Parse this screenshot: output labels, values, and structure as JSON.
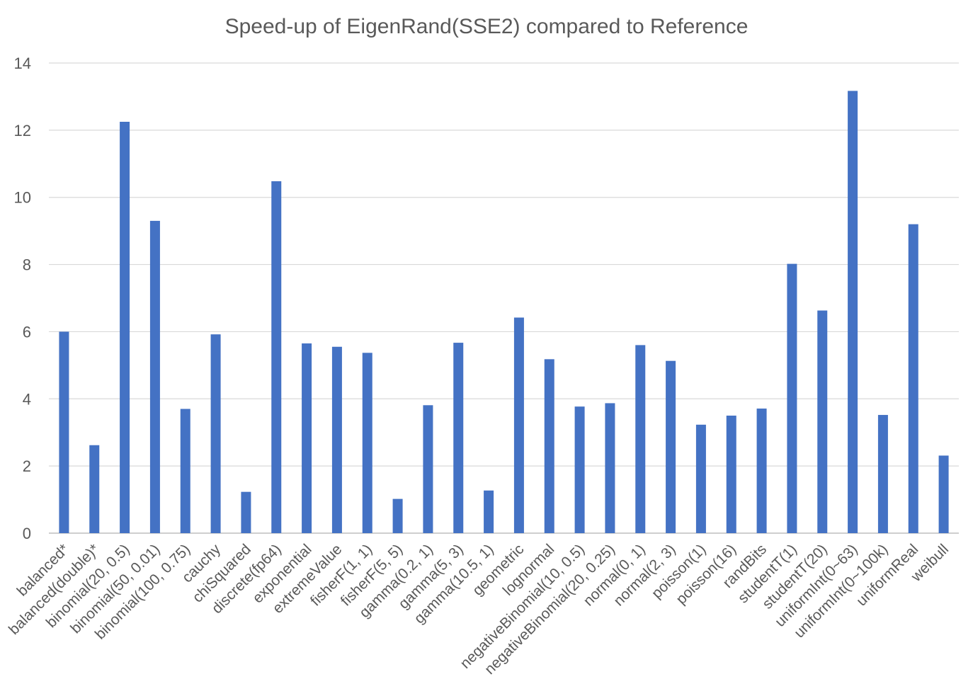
{
  "chart_data": {
    "type": "bar",
    "title": "Speed-up of EigenRand(SSE2) compared to Reference",
    "xlabel": "",
    "ylabel": "",
    "ylim": [
      0,
      14
    ],
    "yticks": [
      0,
      2,
      4,
      6,
      8,
      10,
      12,
      14
    ],
    "grid": true,
    "legend": "none",
    "bar_color": "#4472C4",
    "categories": [
      "balanced*",
      "balanced(double)*",
      "binomial(20, 0.5)",
      "binomial(50, 0.01)",
      "binomial(100, 0.75)",
      "cauchy",
      "chiSquared",
      "discrete(fp64)",
      "exponential",
      "extremeValue",
      "fisherF(1, 1)",
      "fisherF(5, 5)",
      "gamma(0.2, 1)",
      "gamma(5, 3)",
      "gamma(10.5, 1)",
      "geometric",
      "lognormal",
      "negativeBinomial(10, 0.5)",
      "negativeBinomial(20, 0.25)",
      "normal(0, 1)",
      "normal(2, 3)",
      "poisson(1)",
      "poisson(16)",
      "randBits",
      "studentT(1)",
      "studentT(20)",
      "uniformInt(0~63)",
      "uniformInt(0~100k)",
      "uniformReal",
      "weibull"
    ],
    "values": [
      6.0,
      2.62,
      12.25,
      9.3,
      3.7,
      5.92,
      1.23,
      10.48,
      5.65,
      5.55,
      5.37,
      1.02,
      3.81,
      5.67,
      1.27,
      6.42,
      5.18,
      3.77,
      3.87,
      5.6,
      5.13,
      3.23,
      3.5,
      3.71,
      8.02,
      6.63,
      13.17,
      3.52,
      9.2,
      2.31
    ]
  }
}
